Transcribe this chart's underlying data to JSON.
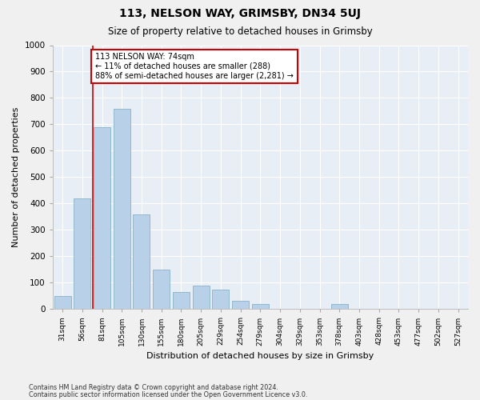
{
  "title": "113, NELSON WAY, GRIMSBY, DN34 5UJ",
  "subtitle": "Size of property relative to detached houses in Grimsby",
  "xlabel": "Distribution of detached houses by size in Grimsby",
  "ylabel": "Number of detached properties",
  "footnote1": "Contains HM Land Registry data © Crown copyright and database right 2024.",
  "footnote2": "Contains public sector information licensed under the Open Government Licence v3.0.",
  "bar_labels": [
    "31sqm",
    "56sqm",
    "81sqm",
    "105sqm",
    "130sqm",
    "155sqm",
    "180sqm",
    "205sqm",
    "229sqm",
    "254sqm",
    "279sqm",
    "304sqm",
    "329sqm",
    "353sqm",
    "378sqm",
    "403sqm",
    "428sqm",
    "453sqm",
    "477sqm",
    "502sqm",
    "527sqm"
  ],
  "bar_values": [
    50,
    420,
    690,
    760,
    360,
    150,
    65,
    90,
    75,
    30,
    20,
    0,
    0,
    0,
    20,
    0,
    0,
    0,
    0,
    0,
    0
  ],
  "bar_color": "#b8d0e8",
  "bar_edge_color": "#7aaabf",
  "background_color": "#e8eef5",
  "grid_color": "#ffffff",
  "annotation_text": "113 NELSON WAY: 74sqm\n← 11% of detached houses are smaller (288)\n88% of semi-detached houses are larger (2,281) →",
  "annotation_box_color": "#ffffff",
  "annotation_box_edge": "#cc0000",
  "ylim": [
    0,
    1000
  ],
  "yticks": [
    0,
    100,
    200,
    300,
    400,
    500,
    600,
    700,
    800,
    900,
    1000
  ],
  "red_line_x": 1.55
}
